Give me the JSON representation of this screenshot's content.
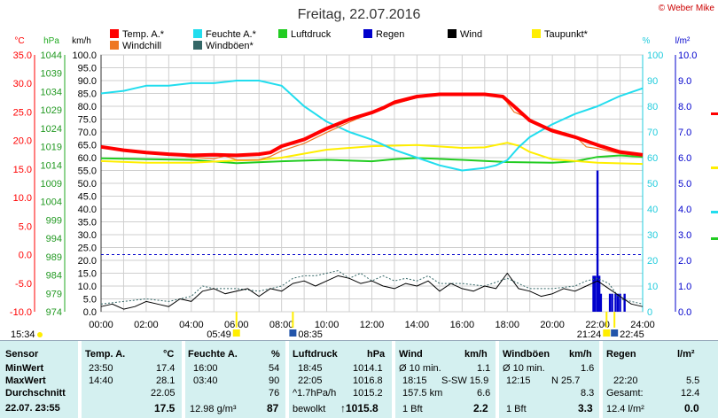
{
  "title": "Freitag, 22.07.2016",
  "brand": "© Weber Mike",
  "units": {
    "temp": "°C",
    "pressure": "hPa",
    "wind": "km/h",
    "humidity": "%",
    "rain": "l/m²"
  },
  "chart_data": {
    "type": "line",
    "title": "Freitag, 22.07.2016",
    "x_ticks": [
      "00:00",
      "02:00",
      "04:00",
      "06:00",
      "08:00",
      "10:00",
      "12:00",
      "14:00",
      "16:00",
      "18:00",
      "20:00",
      "22:00",
      "24:00"
    ],
    "x_range_hours": [
      0,
      24
    ],
    "axes": {
      "temp": {
        "unit": "°C",
        "ticks": [
          "35.0",
          "30.0",
          "25.0",
          "20.0",
          "15.0",
          "10.0",
          "5.0",
          "0.0",
          "-5.0",
          "-10.0"
        ],
        "range": [
          -10,
          35
        ]
      },
      "pressure": {
        "unit": "hPa",
        "ticks": [
          "1044",
          "1039",
          "1034",
          "1029",
          "1024",
          "1019",
          "1014",
          "1009",
          "1004",
          "999",
          "994",
          "989",
          "984",
          "979",
          "974"
        ],
        "range": [
          974,
          1044
        ]
      },
      "wind": {
        "unit": "km/h",
        "ticks": [
          "100.0",
          "95.0",
          "90.0",
          "85.0",
          "80.0",
          "75.0",
          "70.0",
          "65.0",
          "60.0",
          "55.0",
          "50.0",
          "45.0",
          "40.0",
          "35.0",
          "30.0",
          "25.0",
          "20.0",
          "15.0",
          "10.0",
          "5.0",
          "0.0"
        ],
        "range": [
          0,
          100
        ]
      },
      "humidity": {
        "unit": "%",
        "ticks": [
          "100",
          "90",
          "80",
          "70",
          "60",
          "50",
          "40",
          "30",
          "20",
          "10",
          "0"
        ],
        "range": [
          0,
          100
        ]
      },
      "rain": {
        "unit": "l/m²",
        "ticks": [
          "10.0",
          "9.0",
          "8.0",
          "7.0",
          "6.0",
          "5.0",
          "4.0",
          "3.0",
          "2.0",
          "1.0",
          "0.0"
        ],
        "range": [
          0,
          10
        ]
      }
    },
    "legend": [
      {
        "label": "Temp. A.*",
        "color": "#ff0000"
      },
      {
        "label": "Feuchte A.*",
        "color": "#22ddee"
      },
      {
        "label": "Luftdruck",
        "color": "#22cc22"
      },
      {
        "label": "Regen",
        "color": "#0000cc"
      },
      {
        "label": "Wind",
        "color": "#000000"
      },
      {
        "label": "Taupunkt*",
        "color": "#ffee00"
      },
      {
        "label": "Windchill",
        "color": "#ee7722"
      },
      {
        "label": "Windböen*",
        "color": "#336666"
      }
    ],
    "series": [
      {
        "name": "Temp. A.*",
        "axis": "temp",
        "color": "#ff0000",
        "x": [
          0,
          1,
          2,
          3,
          4,
          5,
          6,
          7,
          7.5,
          8,
          9,
          10,
          11,
          12,
          12.5,
          13,
          14,
          15,
          16,
          17,
          17.8,
          18.3,
          19,
          20,
          21,
          22,
          23,
          24
        ],
        "y": [
          18.9,
          18.3,
          17.9,
          17.6,
          17.4,
          17.5,
          17.4,
          17.6,
          17.9,
          19.0,
          20.2,
          22.1,
          23.7,
          24.9,
          25.7,
          26.7,
          27.7,
          28.1,
          28.1,
          28.1,
          27.7,
          26.0,
          23.5,
          21.7,
          20.6,
          19.2,
          18.0,
          17.5
        ]
      },
      {
        "name": "Windchill",
        "axis": "temp",
        "color": "#ee7722",
        "x": [
          0,
          1,
          2,
          3,
          4,
          5,
          5.5,
          6,
          7,
          7.5,
          8,
          9,
          10,
          11,
          12,
          13,
          14,
          15,
          16,
          17,
          17.8,
          18.3,
          19,
          19.5,
          20,
          21,
          21.5,
          22,
          23,
          24
        ],
        "y": [
          18.9,
          18.3,
          17.9,
          17.6,
          17.1,
          16.8,
          17.3,
          16.6,
          16.6,
          17.2,
          18.2,
          19.5,
          21.4,
          23.2,
          24.9,
          26.4,
          27.5,
          28.0,
          28.1,
          28.1,
          27.7,
          25.0,
          23.8,
          22.5,
          22.0,
          20.8,
          18.9,
          18.6,
          17.7,
          17.3
        ]
      },
      {
        "name": "Taupunkt*",
        "axis": "temp",
        "color": "#ffee00",
        "x": [
          0,
          2,
          4,
          6,
          7,
          8,
          10,
          12,
          14,
          16,
          17,
          18,
          18.5,
          19,
          20,
          22,
          24
        ],
        "y": [
          16.4,
          16.1,
          16.1,
          16.5,
          16.6,
          17.0,
          18.4,
          19.0,
          19.2,
          18.7,
          18.8,
          19.6,
          19.1,
          18.0,
          16.7,
          16.1,
          15.9
        ]
      },
      {
        "name": "Luftdruck",
        "axis": "pressure",
        "color": "#22cc22",
        "x": [
          0,
          2,
          4,
          6,
          8,
          10,
          12,
          13,
          14,
          16,
          18,
          20,
          21,
          22,
          23,
          24
        ],
        "y": [
          1015.8,
          1015.6,
          1015.4,
          1014.5,
          1015.0,
          1015.4,
          1015.0,
          1015.6,
          1015.9,
          1015.4,
          1014.8,
          1014.6,
          1015.0,
          1016.2,
          1016.6,
          1016.2
        ]
      },
      {
        "name": "Feuchte A.*",
        "axis": "humidity",
        "color": "#22ddee",
        "x": [
          0,
          1,
          1.5,
          2,
          3,
          4,
          5,
          6,
          7,
          8,
          9,
          10,
          11,
          12,
          13,
          14,
          15,
          16,
          17,
          17.5,
          18,
          18.5,
          19,
          20,
          21,
          22,
          23,
          24
        ],
        "y": [
          85,
          86,
          87,
          88,
          88,
          89,
          89,
          90,
          90,
          88,
          80,
          74,
          70,
          67,
          63,
          60,
          57,
          55,
          56,
          57,
          59,
          64,
          68,
          73,
          77,
          80,
          84,
          87
        ]
      },
      {
        "name": "Wind",
        "axis": "wind",
        "color": "#000000",
        "x": [
          0,
          0.5,
          1,
          1.5,
          2,
          2.5,
          3,
          3.5,
          4,
          4.5,
          5,
          5.5,
          6,
          6.5,
          7,
          7.5,
          8,
          8.5,
          9,
          9.5,
          10,
          10.5,
          11,
          11.5,
          12,
          12.5,
          13,
          13.5,
          14,
          14.5,
          15,
          15.5,
          16,
          16.5,
          17,
          17.5,
          18,
          18.5,
          19,
          19.5,
          20,
          20.5,
          21,
          21.5,
          22,
          22.5,
          23,
          23.5,
          24
        ],
        "y": [
          2,
          3,
          1,
          2,
          4,
          3,
          2,
          5,
          4,
          8,
          9,
          7,
          8,
          9,
          6,
          9,
          8,
          11,
          12,
          10,
          12,
          14,
          13,
          11,
          12,
          10,
          9,
          11,
          10,
          12,
          8,
          11,
          9,
          8,
          10,
          9,
          15,
          9,
          8,
          6,
          7,
          9,
          8,
          10,
          12,
          9,
          6,
          3,
          2
        ]
      },
      {
        "name": "Windböen*",
        "axis": "wind",
        "color": "#336666",
        "x": [
          0,
          1,
          2,
          3,
          4,
          4.5,
          5,
          6,
          7,
          8,
          8.5,
          9,
          9.5,
          10,
          10.5,
          11,
          11.5,
          12,
          12.5,
          13,
          13.5,
          14,
          14.5,
          15,
          16,
          17,
          18,
          18.5,
          19,
          20,
          21,
          21.5,
          22,
          22.5,
          23,
          24
        ],
        "y": [
          3,
          4,
          5,
          4,
          6,
          10,
          9,
          9,
          8,
          10,
          13,
          14,
          14,
          15,
          16,
          13,
          15,
          12,
          14,
          12,
          13,
          12,
          14,
          11,
          11,
          10,
          13,
          11,
          9,
          9,
          10,
          12,
          13,
          11,
          5,
          3
        ]
      },
      {
        "name": "Regen",
        "axis": "rain",
        "color": "#0000cc",
        "type": "bar",
        "x": [
          21.82,
          21.9,
          22.0,
          22.08,
          22.15,
          22.55,
          22.65,
          22.8,
          22.9,
          23.0,
          23.2
        ],
        "y": [
          1.4,
          1.4,
          5.5,
          1.4,
          0.7,
          0.7,
          0.7,
          0.7,
          0.7,
          0.7,
          0.7
        ]
      }
    ],
    "reference_lines": [
      {
        "axis": "temp",
        "value": 0,
        "style": "dashed",
        "color": "#0000cc"
      }
    ],
    "time_markers": [
      {
        "label": "15:34",
        "hour": 0
      },
      {
        "label": "05:49",
        "hour": 6.0
      },
      {
        "label": "08:35",
        "hour": 8.5
      },
      {
        "label": "21:24",
        "hour": 22.4
      },
      {
        "label": "22:45",
        "hour": 22.75
      }
    ]
  },
  "stats": {
    "headers": [
      {
        "label": "Sensor",
        "unit": ""
      },
      {
        "label": "Temp. A.",
        "unit": "°C"
      },
      {
        "label": "Feuchte A.",
        "unit": "%"
      },
      {
        "label": "Luftdruck",
        "unit": "hPa"
      },
      {
        "label": "Wind",
        "unit": "km/h"
      },
      {
        "label": "Windböen",
        "unit": "km/h"
      },
      {
        "label": "Regen",
        "unit": "l/m²"
      }
    ],
    "row_labels": [
      "MinWert",
      "MaxWert",
      "Durchschnitt",
      "22.07. 23:55"
    ],
    "temp": {
      "min_time": "23:50",
      "min": "17.4",
      "max_time": "14:40",
      "max": "28.1",
      "avg": "22.05",
      "current": "17.5"
    },
    "humidity": {
      "min_time": "16:00",
      "min": "54",
      "max_time": "03:40",
      "max": "90",
      "avg": "76",
      "current_extra": "12.98 g/m³",
      "current": "87"
    },
    "pressure": {
      "min_time": "18:45",
      "min": "1014.1",
      "max_time": "22:05",
      "max": "1016.8",
      "trend": "^1.7hPa/h",
      "avg": "1015.2",
      "status": "bewolkt",
      "current": "↑1015.8"
    },
    "wind": {
      "avg_label": "Ø 10 min.",
      "avg10": "1.1",
      "max_time": "18:15",
      "max_dir": "S-SW 15.9",
      "dir": "157.5 km",
      "dir_val": "6.6",
      "bft": "1 Bft",
      "current": "2.2"
    },
    "gust": {
      "avg_label": "Ø 10 min.",
      "avg10": "1.6",
      "max_time": "12:15",
      "max_dir": "N 25.7",
      "avg": "8.3",
      "bft": "1 Bft",
      "current": "3.3"
    },
    "rain": {
      "time": "22:20",
      "val": "5.5",
      "total_label": "Gesamt:",
      "total": "12.4",
      "rate": "12.4 l/m²",
      "current": "0.0"
    }
  }
}
